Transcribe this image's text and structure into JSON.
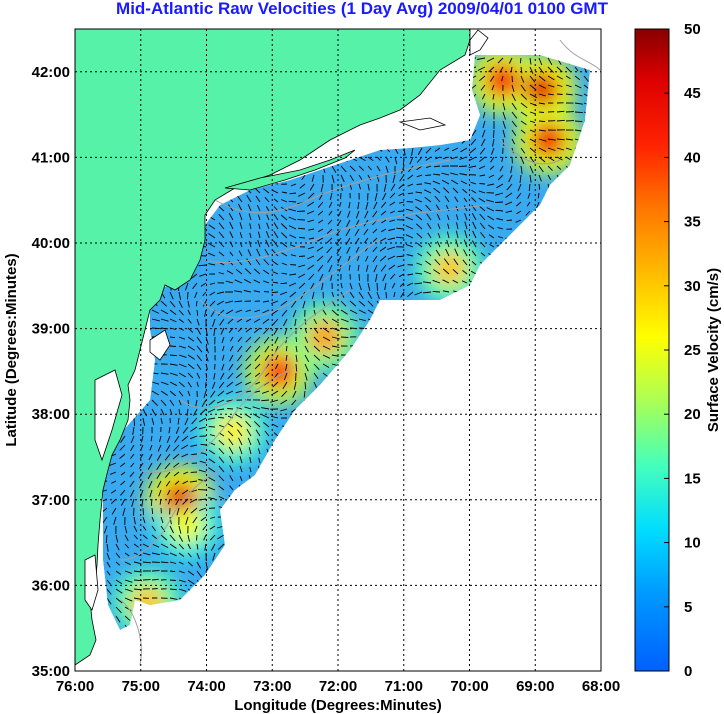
{
  "title": "Mid-Atlantic Raw Velocities (1 Day Avg) 2009/04/01 0100 GMT",
  "x_axis": {
    "label": "Longitude (Degrees:Minutes)",
    "ticks": [
      "76:00",
      "75:00",
      "74:00",
      "73:00",
      "72:00",
      "71:00",
      "70:00",
      "69:00",
      "68:00"
    ],
    "range_deg_west": [
      76,
      68
    ]
  },
  "y_axis": {
    "label": "Latitude (Degrees:Minutes)",
    "ticks": [
      "35:00",
      "36:00",
      "37:00",
      "38:00",
      "39:00",
      "40:00",
      "41:00",
      "42:00"
    ],
    "range_deg_north": [
      35,
      42.5
    ]
  },
  "colorbar": {
    "label": "Surface Velocity (cm/s)",
    "ticks": [
      "0",
      "5",
      "10",
      "15",
      "20",
      "25",
      "30",
      "35",
      "40",
      "45",
      "50"
    ],
    "range": [
      0,
      50
    ],
    "colormap": "jet"
  },
  "colors": {
    "land": "#55f2a8",
    "ocean": "#ffffff",
    "title": "#1a1aff",
    "bathymetry": "#a0a0a0",
    "grid": "#000000"
  },
  "chart_data": {
    "type": "heatmap",
    "title": "Mid-Atlantic Raw Velocities (1 Day Avg) 2009/04/01 0100 GMT",
    "xlabel": "Longitude (Degrees:Minutes)",
    "ylabel": "Latitude (Degrees:Minutes)",
    "xlim": [
      -76,
      -68
    ],
    "ylim": [
      35,
      42.5
    ],
    "grid": true,
    "colorbar_range_cm_s": [
      0,
      50
    ],
    "velocity_hotspots": [
      {
        "lon": -68.9,
        "lat": 41.8,
        "speed": 45
      },
      {
        "lon": -69.5,
        "lat": 41.9,
        "speed": 42
      },
      {
        "lon": -68.8,
        "lat": 41.2,
        "speed": 43
      },
      {
        "lon": -72.9,
        "lat": 38.5,
        "speed": 40
      },
      {
        "lon": -74.4,
        "lat": 37.0,
        "speed": 45
      },
      {
        "lon": -72.2,
        "lat": 38.9,
        "speed": 33
      },
      {
        "lon": -70.3,
        "lat": 39.7,
        "speed": 30
      },
      {
        "lon": -74.9,
        "lat": 35.8,
        "speed": 30
      },
      {
        "lon": -73.6,
        "lat": 37.8,
        "speed": 27
      },
      {
        "lon": -74.3,
        "lat": 36.7,
        "speed": 25
      }
    ],
    "typical_speed_shelf_cm_s": 8
  }
}
